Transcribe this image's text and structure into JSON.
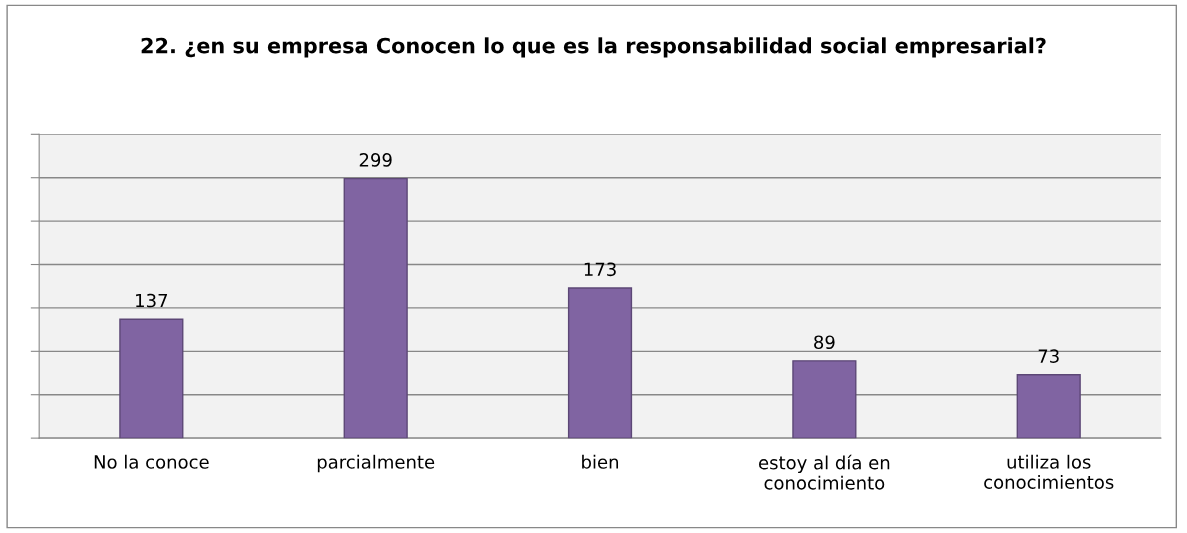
{
  "chart_data": {
    "type": "bar",
    "title": "22. ¿en su empresa Conocen lo que es la responsabilidad social empresarial?",
    "categories": [
      "No la conoce",
      "parcialmente",
      "bien",
      "estoy al día en\nconocimiento",
      "utiliza los\nconocimientos"
    ],
    "values": [
      137,
      299,
      173,
      89,
      73
    ],
    "color": "#8064a2",
    "ylim": [
      0,
      350
    ],
    "yticks": [
      {
        "value": 0,
        "label": null
      },
      {
        "value": 50,
        "label": null
      },
      {
        "value": 100,
        "label": null
      },
      {
        "value": 150,
        "label": null
      },
      {
        "value": 200,
        "label": null
      },
      {
        "value": 250,
        "label": null
      },
      {
        "value": 300,
        "label": null
      },
      {
        "value": 350,
        "label": null
      }
    ],
    "grid": "y",
    "data_labels": true,
    "tick_labels": "x"
  }
}
